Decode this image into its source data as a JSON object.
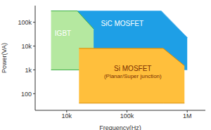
{
  "chart_data": {
    "type": "area",
    "x_label": "Frequency(Hz)",
    "y_label": "Power(VA)",
    "log": true,
    "grid": false,
    "xlim": [
      3000,
      2000000
    ],
    "ylim": [
      20,
      500000
    ],
    "xticks": [
      {
        "value": 10000,
        "label": "10k"
      },
      {
        "value": 100000,
        "label": "100k"
      },
      {
        "value": 1000000,
        "label": "1M"
      }
    ],
    "yticks": [
      100,
      {
        "value": 1000,
        "label": "1k"
      },
      {
        "value": 10000,
        "label": "10k"
      },
      {
        "value": 100000,
        "label": "100k"
      }
    ],
    "series": [
      {
        "name": "SiC MOSFET",
        "color": "#1e9fe6",
        "x": [
          11000,
          370000,
          1000000
        ],
        "values": [
          [
            1000,
            300000
          ],
          [
            1000,
            300000
          ],
          [
            1000,
            23000
          ]
        ]
      },
      {
        "name": "IGBT",
        "color": "#b5e8a0",
        "x": [
          5500,
          15000,
          28000
        ],
        "values": [
          [
            1000,
            300000
          ],
          [
            1000,
            300000
          ],
          [
            1000,
            53000
          ]
        ]
      },
      {
        "name": "Si MOSFET",
        "color": "#ffbf3c",
        "x": [
          16000,
          400000,
          900000
        ],
        "values": [
          [
            40,
            8000
          ],
          [
            40,
            8000
          ],
          [
            40,
            1500
          ]
        ]
      }
    ],
    "annotations": [
      {
        "text": "(Planar/Super junction)",
        "series": "Si MOSFET"
      }
    ]
  }
}
